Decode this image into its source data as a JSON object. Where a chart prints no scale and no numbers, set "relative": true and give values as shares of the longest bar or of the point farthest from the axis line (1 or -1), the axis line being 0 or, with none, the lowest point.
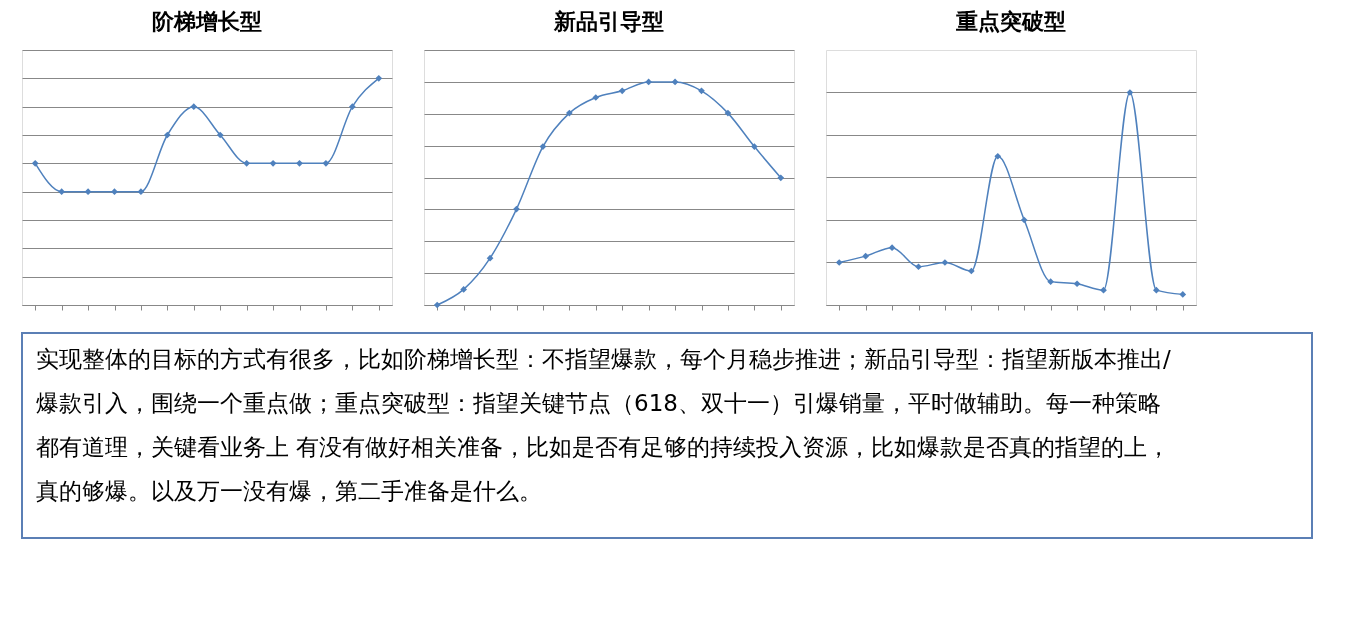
{
  "chart_data": [
    {
      "type": "line",
      "title": "阶梯增长型",
      "relative": true,
      "grid": "y",
      "marker": "diamond",
      "line_style": "solid",
      "categories": [
        null,
        null,
        null,
        null,
        null,
        null,
        null,
        null,
        null,
        null,
        null,
        null,
        null,
        null
      ],
      "series": [
        {
          "color": "#4f81bd",
          "values": [
            0.625,
            0.5,
            0.5,
            0.5,
            0.5,
            0.75,
            0.875,
            0.75,
            0.625,
            0.625,
            0.625,
            0.625,
            0.875,
            1
          ]
        }
      ]
    },
    {
      "type": "line",
      "title": "新品引导型",
      "relative": true,
      "grid": "y",
      "marker": "diamond",
      "line_style": "solid",
      "categories": [
        null,
        null,
        null,
        null,
        null,
        null,
        null,
        null,
        null,
        null,
        null,
        null,
        null,
        null
      ],
      "series": [
        {
          "color": "#4f81bd",
          "values": [
            0,
            0.07,
            0.21,
            0.43,
            0.71,
            0.86,
            0.93,
            0.96,
            1,
            1,
            0.96,
            0.86,
            0.71,
            0.57
          ]
        }
      ]
    },
    {
      "type": "line",
      "title": "重点突破型",
      "relative": true,
      "grid": "y",
      "marker": "diamond",
      "line_style": "solid",
      "categories": [
        null,
        null,
        null,
        null,
        null,
        null,
        null,
        null,
        null,
        null,
        null,
        null,
        null,
        null
      ],
      "series": [
        {
          "color": "#4f81bd",
          "values": [
            0.2,
            0.23,
            0.27,
            0.18,
            0.2,
            0.16,
            0.7,
            0.4,
            0.11,
            0.1,
            0.07,
            1,
            0.07,
            0.05
          ]
        }
      ]
    },
    {
      "type": "other",
      "annotations": [
        "实现整体的目标的方式有很多，比如阶梯增长型：不指望爆款，每个月稳步推进；新品引导型：指望新版本推出/爆款引入，围绕一个重点做；重点突破型：指望关键节点（618、双十一）引爆销量，平时做辅助。每一种策略都有道理，关键看业务上 有没有做好相关准备，比如是否有足够的持续投入资源，比如爆款是否真的指望的上，真的够爆。以及万一没有爆，第二手准备是什么。"
      ]
    }
  ]
}
